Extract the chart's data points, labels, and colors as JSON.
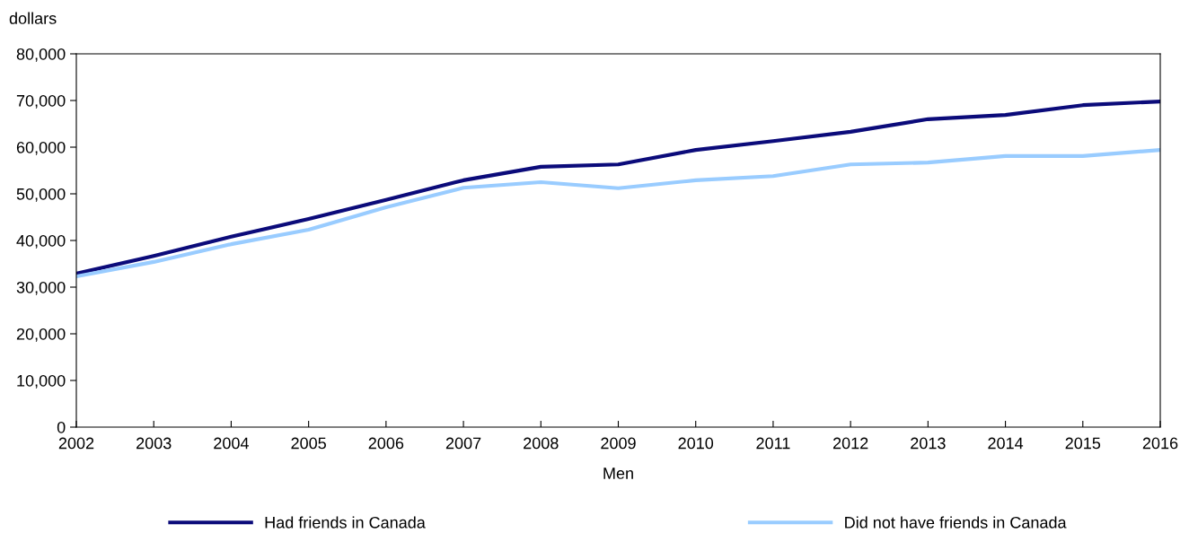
{
  "chart_data": {
    "type": "line",
    "xlabel": "Men",
    "ylabel": "dollars",
    "x": [
      2002,
      2003,
      2004,
      2005,
      2006,
      2007,
      2008,
      2009,
      2010,
      2011,
      2012,
      2013,
      2014,
      2015,
      2016
    ],
    "series": [
      {
        "name": "Had friends in Canada",
        "color": "#0b0b7a",
        "values": [
          32900,
          36700,
          40800,
          44600,
          48700,
          52900,
          55800,
          56300,
          59400,
          61300,
          63300,
          66000,
          66900,
          69000,
          69800
        ]
      },
      {
        "name": "Did not have friends in Canada",
        "color": "#99ccff",
        "values": [
          32300,
          35400,
          39200,
          42300,
          47100,
          51300,
          52500,
          51200,
          52900,
          53800,
          56300,
          56700,
          58100,
          58100,
          59400
        ]
      }
    ],
    "xlim": [
      2002,
      2016
    ],
    "xticks": [
      2002,
      2003,
      2004,
      2005,
      2006,
      2007,
      2008,
      2009,
      2010,
      2011,
      2012,
      2013,
      2014,
      2015,
      2016
    ],
    "ylim": [
      0,
      80000
    ],
    "yticks": [
      {
        "value": 0,
        "label": "0"
      },
      {
        "value": 10000,
        "label": "10,000"
      },
      {
        "value": 20000,
        "label": "20,000"
      },
      {
        "value": 30000,
        "label": "30,000"
      },
      {
        "value": 40000,
        "label": "40,000"
      },
      {
        "value": 50000,
        "label": "50,000"
      },
      {
        "value": 60000,
        "label": "60,000"
      },
      {
        "value": 70000,
        "label": "70,000"
      },
      {
        "value": 80000,
        "label": "80,000"
      }
    ],
    "grid": false,
    "legend": "bottom",
    "marker": "none",
    "line_style": "solid"
  }
}
